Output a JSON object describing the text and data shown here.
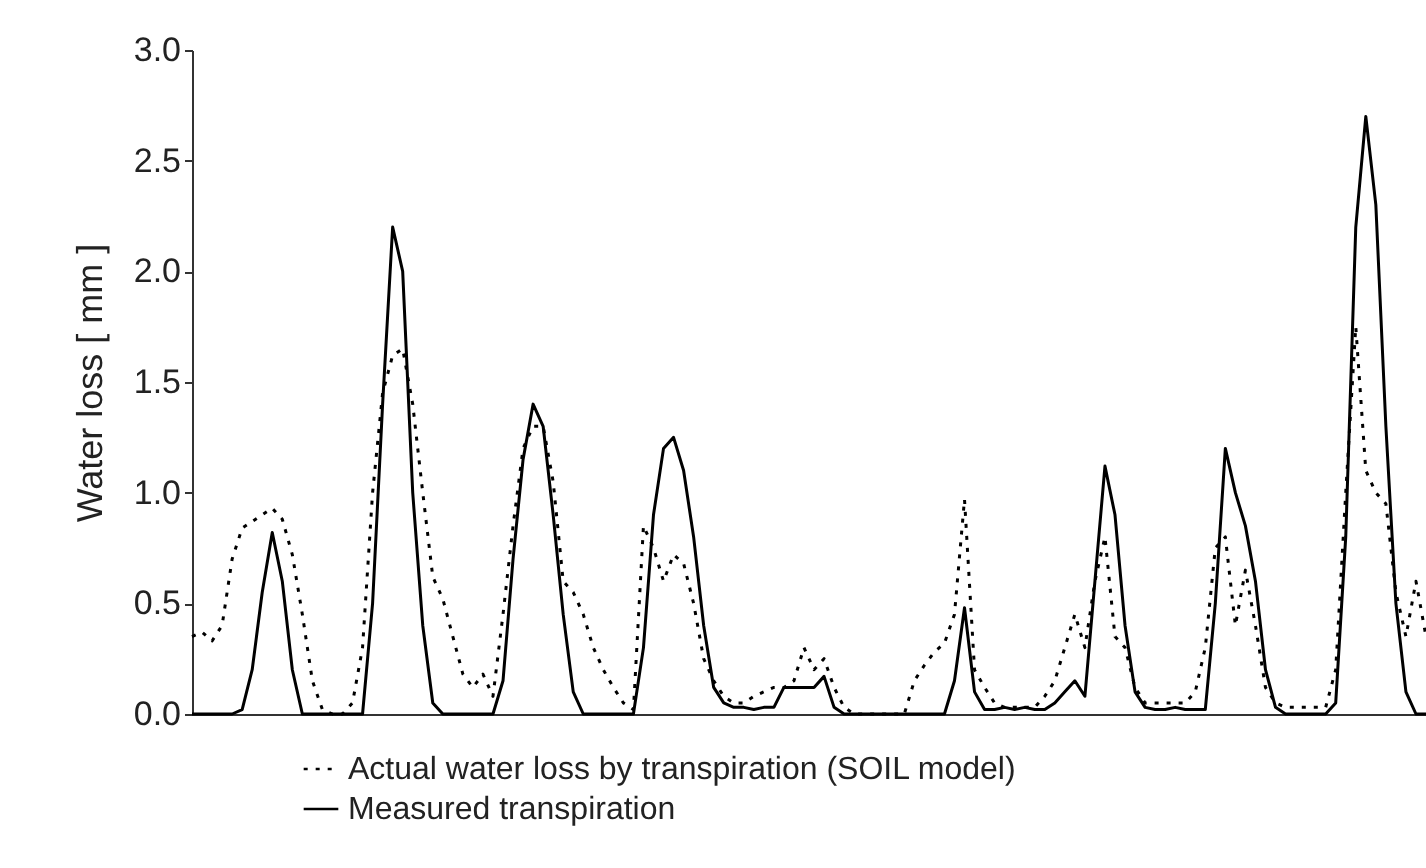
{
  "chart_data": {
    "type": "line",
    "ylabel": "Water loss   [ mm ]",
    "categories": [
      null,
      null,
      null,
      null,
      null,
      null,
      null,
      null,
      null,
      null,
      null,
      null,
      null,
      null,
      null,
      null,
      null,
      null,
      null,
      null,
      null,
      null,
      null,
      null,
      null,
      null,
      null,
      null,
      null,
      null,
      null,
      null,
      null,
      null,
      null,
      null,
      null,
      null,
      null,
      null,
      null,
      null,
      null,
      null,
      null,
      null,
      null,
      null,
      null,
      null,
      null,
      null,
      null,
      null,
      null,
      null,
      null,
      null,
      null,
      null,
      null,
      null,
      null,
      null,
      null,
      null,
      null,
      null,
      null,
      null,
      null,
      null,
      null,
      null,
      null,
      null,
      null,
      null,
      null,
      null,
      null,
      null,
      null,
      null,
      null,
      null,
      null,
      null,
      null,
      null,
      null,
      null,
      null,
      null,
      null,
      null,
      null,
      null,
      null,
      null,
      null,
      null,
      null,
      null,
      null,
      null,
      null,
      null,
      null,
      null,
      null,
      null,
      null,
      null,
      null,
      null,
      null,
      null,
      null,
      null,
      null,
      null,
      null,
      null
    ],
    "series": [
      {
        "name": "Actual water loss by transpiration (SOIL model)",
        "color": "#000000",
        "line_style": "dotted",
        "values": [
          0.35,
          0.37,
          0.33,
          0.4,
          0.7,
          0.84,
          0.87,
          0.9,
          0.93,
          0.88,
          0.72,
          0.45,
          0.15,
          0.02,
          0,
          0,
          0.05,
          0.3,
          1.0,
          1.45,
          1.62,
          1.65,
          1.4,
          1.0,
          0.62,
          0.52,
          0.35,
          0.18,
          0.12,
          0.18,
          0.08,
          0.45,
          0.85,
          1.2,
          1.3,
          1.3,
          1.05,
          0.6,
          0.55,
          0.45,
          0.3,
          0.2,
          0.12,
          0.05,
          0.02,
          0.85,
          0.75,
          0.6,
          0.72,
          0.68,
          0.5,
          0.25,
          0.15,
          0.08,
          0.05,
          0.05,
          0.08,
          0.1,
          0.12,
          0.12,
          0.15,
          0.3,
          0.2,
          0.25,
          0.12,
          0.03,
          0,
          0,
          0,
          0,
          0,
          0,
          0.15,
          0.22,
          0.28,
          0.32,
          0.45,
          0.97,
          0.2,
          0.12,
          0.05,
          0.03,
          0.03,
          0.03,
          0.03,
          0.08,
          0.15,
          0.3,
          0.45,
          0.3,
          0.6,
          0.8,
          0.35,
          0.3,
          0.12,
          0.05,
          0.05,
          0.05,
          0.05,
          0.05,
          0.1,
          0.3,
          0.75,
          0.8,
          0.4,
          0.65,
          0.4,
          0.12,
          0.05,
          0.03,
          0.03,
          0.03,
          0.03,
          0.03,
          0.2,
          1.0,
          1.75,
          1.1,
          1.0,
          0.95,
          0.55,
          0.35,
          0.6,
          0.35
        ]
      },
      {
        "name": "Measured transpiration",
        "color": "#000000",
        "line_style": "solid",
        "values": [
          0,
          0,
          0,
          0,
          0,
          0.02,
          0.2,
          0.55,
          0.82,
          0.6,
          0.2,
          0,
          0,
          0,
          0,
          0,
          0,
          0,
          0.5,
          1.4,
          2.2,
          2.0,
          1.0,
          0.4,
          0.05,
          0,
          0,
          0,
          0,
          0,
          0,
          0.15,
          0.7,
          1.15,
          1.4,
          1.3,
          0.9,
          0.45,
          0.1,
          0,
          0,
          0,
          0,
          0,
          0,
          0.3,
          0.9,
          1.2,
          1.25,
          1.1,
          0.8,
          0.4,
          0.12,
          0.05,
          0.03,
          0.03,
          0.02,
          0.03,
          0.03,
          0.12,
          0.12,
          0.12,
          0.12,
          0.17,
          0.03,
          0,
          0,
          0,
          0,
          0,
          0,
          0,
          0,
          0,
          0,
          0,
          0.15,
          0.48,
          0.1,
          0.02,
          0.02,
          0.03,
          0.02,
          0.03,
          0.02,
          0.02,
          0.05,
          0.1,
          0.15,
          0.08,
          0.6,
          1.12,
          0.9,
          0.4,
          0.1,
          0.03,
          0.02,
          0.02,
          0.03,
          0.02,
          0.02,
          0.02,
          0.5,
          1.2,
          1.0,
          0.85,
          0.6,
          0.2,
          0.03,
          0,
          0,
          0,
          0,
          0,
          0.05,
          0.8,
          2.2,
          2.7,
          2.3,
          1.3,
          0.5,
          0.1,
          0,
          0
        ]
      }
    ],
    "ylim": [
      0,
      3
    ],
    "yticks": [
      {
        "value": 0,
        "label": "0.0"
      },
      {
        "value": 0.5,
        "label": "0.5"
      },
      {
        "value": 1,
        "label": "1.0"
      },
      {
        "value": 1.5,
        "label": "1.5"
      },
      {
        "value": 2,
        "label": "2.0"
      },
      {
        "value": 2.5,
        "label": "2.5"
      },
      {
        "value": 3,
        "label": "3.0"
      }
    ],
    "grid": false,
    "legend": "bottom",
    "tick_labels": "y"
  }
}
